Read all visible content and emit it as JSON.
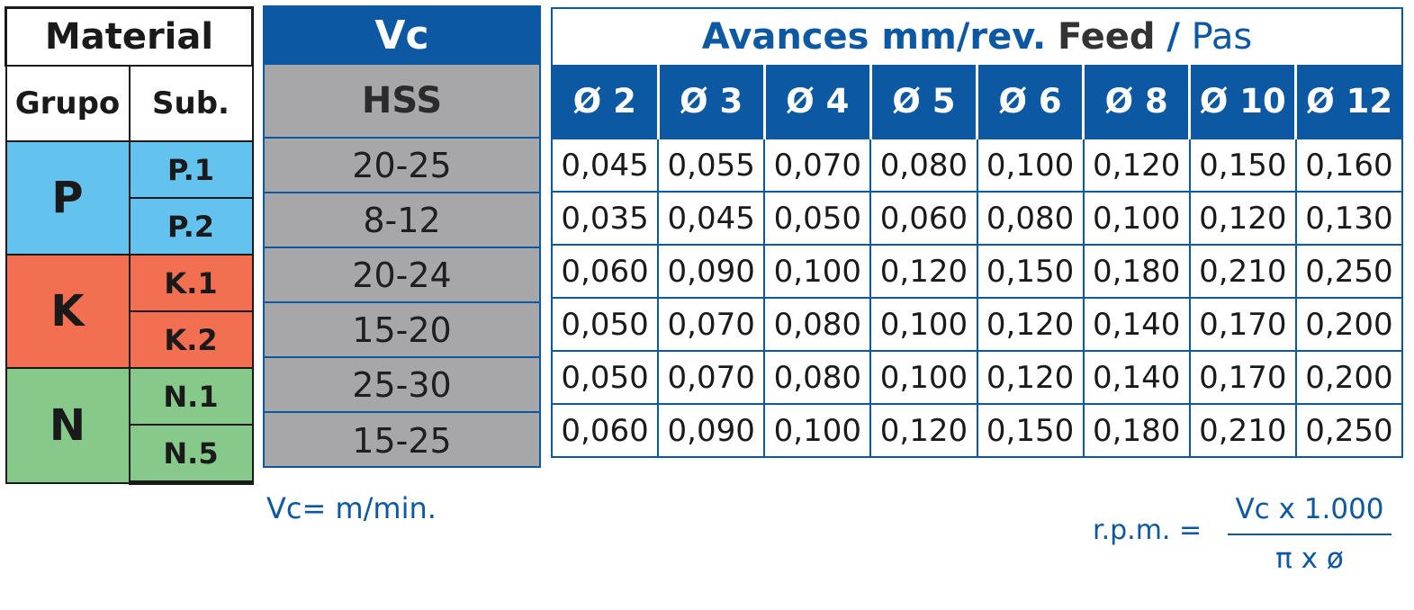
{
  "material": {
    "header": "Material",
    "col_group": "Grupo",
    "col_sub": "Sub.",
    "groups": [
      {
        "label": "P",
        "color": "#63c2ee",
        "subs": [
          "P.1",
          "P.2"
        ]
      },
      {
        "label": "K",
        "color": "#f36f51",
        "subs": [
          "K.1",
          "K.2"
        ]
      },
      {
        "label": "N",
        "color": "#86c98a",
        "subs": [
          "N.1",
          "N.5"
        ]
      }
    ]
  },
  "vc": {
    "header": "Vc",
    "subheader": "HSS",
    "values": [
      "20-25",
      "8-12",
      "20-24",
      "15-20",
      "25-30",
      "15-25"
    ]
  },
  "feed": {
    "title_part1": "Avances mm/rev.",
    "title_part2": "Feed",
    "title_sep": "/",
    "title_part3": "Pas",
    "diameters": [
      "Ø 2",
      "Ø 3",
      "Ø 4",
      "Ø 5",
      "Ø 6",
      "Ø 8",
      "Ø 10",
      "Ø 12"
    ],
    "rows": [
      [
        "0,045",
        "0,055",
        "0,070",
        "0,080",
        "0,100",
        "0,120",
        "0,150",
        "0,160"
      ],
      [
        "0,035",
        "0,045",
        "0,050",
        "0,060",
        "0,080",
        "0,100",
        "0,120",
        "0,130"
      ],
      [
        "0,060",
        "0,090",
        "0,100",
        "0,120",
        "0,150",
        "0,180",
        "0,210",
        "0,250"
      ],
      [
        "0,050",
        "0,070",
        "0,080",
        "0,100",
        "0,120",
        "0,140",
        "0,170",
        "0,200"
      ],
      [
        "0,050",
        "0,070",
        "0,080",
        "0,100",
        "0,120",
        "0,140",
        "0,170",
        "0,200"
      ],
      [
        "0,060",
        "0,090",
        "0,100",
        "0,120",
        "0,150",
        "0,180",
        "0,210",
        "0,250"
      ]
    ]
  },
  "notes": {
    "vc_unit": "Vc= m/min.",
    "rpm_label": "r.p.m. =",
    "rpm_numerator": "Vc x 1.000",
    "rpm_denominator": "π x ø"
  },
  "colors": {
    "brand_blue": "#0d58a3",
    "vc_gray": "#a7a7aa"
  }
}
